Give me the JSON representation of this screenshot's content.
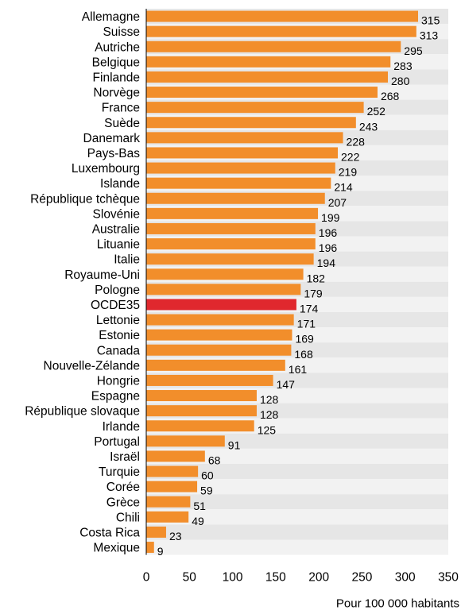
{
  "chart_data": {
    "type": "bar",
    "orientation": "horizontal",
    "categories": [
      "Allemagne",
      "Suisse",
      "Autriche",
      "Belgique",
      "Finlande",
      "Norvège",
      "France",
      "Suède",
      "Danemark",
      "Pays-Bas",
      "Luxembourg",
      "Islande",
      "République tchèque",
      "Slovénie",
      "Australie",
      "Lituanie",
      "Italie",
      "Royaume-Uni",
      "Pologne",
      "OCDE35",
      "Lettonie",
      "Estonie",
      "Canada",
      "Nouvelle-Zélande",
      "Hongrie",
      "Espagne",
      "République slovaque",
      "Irlande",
      "Portugal",
      "Israël",
      "Turquie",
      "Corée",
      "Grèce",
      "Chili",
      "Costa Rica",
      "Mexique"
    ],
    "values": [
      315,
      313,
      295,
      283,
      280,
      268,
      252,
      243,
      228,
      222,
      219,
      214,
      207,
      199,
      196,
      196,
      194,
      182,
      179,
      174,
      171,
      169,
      168,
      161,
      147,
      128,
      128,
      125,
      91,
      68,
      60,
      59,
      51,
      49,
      23,
      9
    ],
    "highlight_category": "OCDE35",
    "xlim": [
      0,
      350
    ],
    "xticks": [
      0,
      50,
      100,
      150,
      200,
      250,
      300,
      350
    ],
    "xlabel": "Pour 100 000 habitants",
    "grid": false,
    "colors": {
      "bar": "#f28e2b",
      "bar_highlight": "#e0282e",
      "band_even": "#e6e6e6",
      "band_odd": "#f2f2f2",
      "axis": "#000000"
    }
  }
}
